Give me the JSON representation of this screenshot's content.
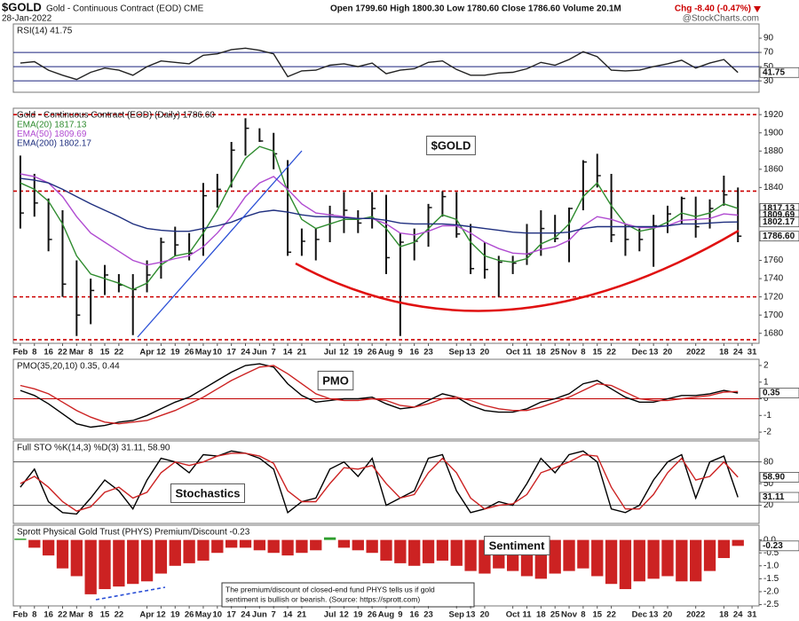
{
  "header": {
    "symbol": "$GOLD",
    "name": "Gold - Continuous Contract (EOD) CME",
    "date": "28-Jan-2022",
    "quote": "Open 1799.60  High 1800.30  Low 1780.60  Close 1786.60  Volume 20.1M",
    "change": "Chg -8.40 (-0.47%)",
    "credit": "@StockCharts.com"
  },
  "chart_data": [
    {
      "type": "line",
      "title": "RSI(14) 41.75",
      "ylim": [
        14,
        110
      ],
      "yticks": [
        30,
        50,
        70,
        90
      ],
      "reference_lines": [
        30,
        50,
        70
      ],
      "reference_color": "#1a237e",
      "reference_dashed": false,
      "tags": [
        41.75
      ],
      "series": [
        {
          "color": "#222222",
          "values": [
            55,
            57,
            45,
            38,
            32,
            42,
            48,
            45,
            38,
            50,
            58,
            56,
            54,
            66,
            68,
            74,
            76,
            73,
            68,
            36,
            44,
            45,
            52,
            54,
            50,
            55,
            40,
            45,
            47,
            56,
            58,
            46,
            38,
            38,
            41,
            42,
            47,
            56,
            52,
            60,
            71,
            64,
            45,
            44,
            45,
            50,
            54,
            59,
            48,
            55,
            60,
            41.75,
            null
          ]
        }
      ]
    },
    {
      "type": "ohlc",
      "title": "Gold - Continuous Contract (EOD) (Daily) 1786.60",
      "annotation": "$GOLD",
      "color": "#111111",
      "ylim": [
        1669,
        1927
      ],
      "yticks": [
        1680,
        1700,
        1720,
        1740,
        1760,
        1840,
        1860,
        1880,
        1900,
        1920
      ],
      "reference_lines": [
        1673,
        1720,
        1836,
        1920
      ],
      "reference_color": "#cc0000",
      "reference_dashed": true,
      "tags": [
        1817.13,
        1809.69,
        1802.17,
        {
          "value": 1786.6,
          "label": "1786.60"
        }
      ],
      "categories": [
        "Feb",
        "8",
        "16",
        "22",
        "Mar",
        "8",
        "15",
        "22",
        null,
        "Apr",
        "12",
        "19",
        "26",
        "May",
        "10",
        "17",
        "24",
        "Jun",
        "7",
        "14",
        "21",
        null,
        "Jul",
        "12",
        "19",
        "26",
        "Aug",
        "9",
        "16",
        "23",
        null,
        "Sep",
        "13",
        "20",
        null,
        "Oct",
        "11",
        "18",
        "25",
        "Nov",
        "8",
        "15",
        "22",
        null,
        "Dec",
        "13",
        "20",
        null,
        "2022",
        null,
        "18",
        "24",
        "31"
      ],
      "high": [
        1875,
        1855,
        1828,
        1815,
        1760,
        1740,
        1755,
        1745,
        1745,
        1760,
        1785,
        1797,
        1790,
        1845,
        1855,
        1890,
        1916,
        1905,
        1900,
        1870,
        1795,
        1795,
        1820,
        1835,
        1815,
        1835,
        1832,
        1790,
        1795,
        1822,
        1836,
        1835,
        1800,
        1780,
        1765,
        1765,
        1800,
        1815,
        1810,
        1818,
        1870,
        1877,
        1855,
        1800,
        1795,
        1810,
        1820,
        1830,
        1830,
        1827,
        1853,
        1840,
        null
      ],
      "low": [
        1795,
        1808,
        1770,
        1720,
        1677,
        1690,
        1722,
        1725,
        1678,
        1725,
        1740,
        1765,
        1760,
        1765,
        1818,
        1840,
        1875,
        1890,
        1860,
        1765,
        1765,
        1760,
        1780,
        1790,
        1790,
        1795,
        1745,
        1677,
        1760,
        1775,
        1808,
        1785,
        1745,
        1740,
        1720,
        1745,
        1755,
        1765,
        1780,
        1758,
        1815,
        1840,
        1780,
        1765,
        1770,
        1753,
        1790,
        1800,
        1785,
        1795,
        1820,
        1780,
        null
      ],
      "close": [
        1812,
        1823,
        1783,
        1734,
        1700,
        1727,
        1744,
        1733,
        1728,
        1744,
        1780,
        1777,
        1768,
        1831,
        1838,
        1881,
        1905,
        1891,
        1877,
        1769,
        1781,
        1783,
        1810,
        1815,
        1801,
        1817,
        1763,
        1780,
        1781,
        1818,
        1830,
        1789,
        1751,
        1750,
        1758,
        1757,
        1767,
        1795,
        1784,
        1817,
        1868,
        1853,
        1788,
        1783,
        1783,
        1798,
        1811,
        1828,
        1797,
        1817,
        1832,
        1786.6,
        null
      ],
      "series": [
        {
          "name": "EMA(20) 1817.13",
          "color": "#2e8b2e",
          "values": [
            1845,
            1838,
            1825,
            1800,
            1765,
            1745,
            1740,
            1735,
            1728,
            1735,
            1755,
            1765,
            1768,
            1790,
            1815,
            1845,
            1872,
            1885,
            1880,
            1835,
            1805,
            1795,
            1800,
            1805,
            1805,
            1808,
            1795,
            1775,
            1780,
            1795,
            1810,
            1805,
            1780,
            1765,
            1760,
            1758,
            1762,
            1778,
            1785,
            1800,
            1830,
            1845,
            1820,
            1800,
            1792,
            1795,
            1802,
            1812,
            1808,
            1812,
            1822,
            1817.13,
            null
          ]
        },
        {
          "name": "EMA(50) 1809.69",
          "color": "#b04bd1",
          "values": [
            1855,
            1852,
            1845,
            1830,
            1808,
            1790,
            1780,
            1770,
            1760,
            1755,
            1758,
            1762,
            1765,
            1775,
            1790,
            1808,
            1830,
            1845,
            1852,
            1838,
            1822,
            1812,
            1810,
            1808,
            1806,
            1806,
            1800,
            1790,
            1788,
            1792,
            1798,
            1798,
            1790,
            1780,
            1773,
            1768,
            1767,
            1772,
            1775,
            1782,
            1798,
            1808,
            1805,
            1800,
            1796,
            1796,
            1798,
            1804,
            1805,
            1806,
            1811,
            1809.69,
            null
          ]
        },
        {
          "name": "EMA(200) 1802.17",
          "color": "#1f2f7f",
          "values": [
            1850,
            1848,
            1845,
            1838,
            1830,
            1822,
            1815,
            1808,
            1800,
            1795,
            1793,
            1792,
            1792,
            1795,
            1798,
            1802,
            1808,
            1813,
            1815,
            1813,
            1810,
            1808,
            1808,
            1807,
            1806,
            1806,
            1804,
            1801,
            1800,
            1800,
            1800,
            1799,
            1797,
            1795,
            1793,
            1791,
            1790,
            1790,
            1790,
            1791,
            1795,
            1797,
            1797,
            1797,
            1797,
            1797,
            1798,
            1800,
            1800,
            1801,
            1802,
            1802.17,
            null
          ]
        }
      ]
    },
    {
      "type": "line",
      "title": "PMO(35,20,10) 0.35, 0.44",
      "annotation": "PMO",
      "ylim": [
        -2.42,
        2.37
      ],
      "yticks": [
        2,
        1,
        0,
        -1,
        -2
      ],
      "reference_lines": [
        0
      ],
      "reference_color": "#c00000",
      "reference_dashed": false,
      "tags": [
        0.35
      ],
      "series": [
        {
          "color": "#000000",
          "values": [
            0.5,
            0.2,
            -0.3,
            -0.9,
            -1.5,
            -1.7,
            -1.6,
            -1.4,
            -1.3,
            -1.0,
            -0.6,
            -0.2,
            0.1,
            0.6,
            1.1,
            1.6,
            2.0,
            2.1,
            1.9,
            0.9,
            0.2,
            -0.2,
            -0.1,
            0.0,
            0.0,
            0.1,
            -0.3,
            -0.6,
            -0.5,
            -0.1,
            0.3,
            0.1,
            -0.4,
            -0.7,
            -0.8,
            -0.8,
            -0.6,
            -0.2,
            0.0,
            0.3,
            0.9,
            1.1,
            0.6,
            0.1,
            -0.2,
            -0.2,
            0.0,
            0.2,
            0.2,
            0.3,
            0.5,
            0.35,
            null
          ]
        },
        {
          "color": "#cc2222",
          "values": [
            0.8,
            0.6,
            0.3,
            -0.2,
            -0.7,
            -1.1,
            -1.4,
            -1.5,
            -1.4,
            -1.3,
            -1.0,
            -0.7,
            -0.3,
            0.1,
            0.6,
            1.1,
            1.5,
            1.9,
            2.0,
            1.5,
            0.9,
            0.3,
            0.0,
            -0.1,
            -0.1,
            0.0,
            -0.1,
            -0.4,
            -0.5,
            -0.3,
            0.0,
            0.1,
            -0.1,
            -0.4,
            -0.6,
            -0.7,
            -0.7,
            -0.5,
            -0.2,
            0.1,
            0.5,
            0.9,
            0.8,
            0.4,
            0.0,
            -0.1,
            -0.1,
            0.0,
            0.1,
            0.2,
            0.4,
            0.44,
            null
          ]
        }
      ]
    },
    {
      "type": "line",
      "title": "Full STO %K(14,3) %D(3) 31.11, 58.90",
      "annotation": "Stochastics",
      "ylim": [
        -5,
        109
      ],
      "yticks": [
        20,
        50,
        80
      ],
      "reference_lines": [
        20,
        80
      ],
      "reference_color": "#555555",
      "reference_dashed": false,
      "tags": [
        {
          "value": 58.9,
          "label": "58.90"
        },
        31.11
      ],
      "series": [
        {
          "color": "#000000",
          "values": [
            45,
            70,
            25,
            10,
            8,
            30,
            55,
            40,
            15,
            55,
            85,
            80,
            65,
            90,
            88,
            95,
            92,
            85,
            70,
            10,
            25,
            30,
            70,
            80,
            60,
            85,
            20,
            30,
            40,
            85,
            90,
            40,
            10,
            15,
            25,
            20,
            50,
            85,
            65,
            90,
            95,
            80,
            15,
            10,
            20,
            55,
            80,
            90,
            30,
            80,
            88,
            31.11,
            null
          ]
        },
        {
          "color": "#cc2222",
          "values": [
            50,
            60,
            45,
            25,
            12,
            18,
            38,
            45,
            30,
            38,
            65,
            80,
            75,
            80,
            88,
            92,
            92,
            88,
            78,
            40,
            25,
            25,
            50,
            72,
            70,
            75,
            50,
            30,
            35,
            65,
            85,
            65,
            30,
            15,
            20,
            22,
            35,
            65,
            72,
            80,
            90,
            88,
            45,
            15,
            15,
            35,
            65,
            85,
            55,
            60,
            80,
            58.9,
            null
          ]
        }
      ]
    },
    {
      "type": "bar",
      "title": "Sprott Physical Gold Trust (PHYS) Premium/Discount -0.23",
      "annotation": "Sentiment",
      "note": [
        "The premium/discount of closed-end fund PHYS tells us if gold",
        "sentiment is bullish or bearish. (Source: https://sprott.com)"
      ],
      "color": "#cc2222",
      "positive_color": "#2e9e2e",
      "ylim": [
        -2.55,
        0.57
      ],
      "yticks": [
        {
          "value": 0,
          "label": "0.0"
        },
        -0.5,
        {
          "value": -1,
          "label": "-1.0"
        },
        -1.5,
        {
          "value": -2,
          "label": "-2.0"
        },
        -2.5
      ],
      "tags": [
        -0.23
      ],
      "categories": [
        "Feb",
        "8",
        "16",
        "22",
        "Mar",
        "8",
        "15",
        "22",
        null,
        "Apr",
        "12",
        "19",
        "26",
        "May",
        "10",
        "17",
        "24",
        "Jun",
        "7",
        "14",
        "21",
        null,
        "Jul",
        "12",
        "19",
        "26",
        "Aug",
        "9",
        "16",
        "23",
        null,
        "Sep",
        "13",
        "20",
        null,
        "Oct",
        "11",
        "18",
        "25",
        "Nov",
        "8",
        "15",
        "22",
        null,
        "Dec",
        "13",
        "20",
        null,
        "2022",
        null,
        "18",
        "24",
        "31"
      ],
      "values": [
        0.05,
        -0.3,
        -0.6,
        -1.1,
        -1.4,
        -2.1,
        -1.9,
        -1.8,
        -1.7,
        -1.6,
        -1.3,
        -1.0,
        -0.9,
        -0.8,
        -0.5,
        -0.3,
        -0.3,
        -0.4,
        -0.5,
        -0.6,
        -0.5,
        -0.4,
        0.1,
        -0.3,
        -0.4,
        -0.5,
        -0.8,
        -0.9,
        -1.0,
        -0.9,
        -0.8,
        -1.0,
        -1.2,
        -1.3,
        -1.1,
        -1.2,
        -1.4,
        -1.5,
        -1.3,
        -1.2,
        -1.1,
        -1.4,
        -1.7,
        -1.9,
        -1.6,
        -1.5,
        -1.4,
        -1.6,
        -1.6,
        -1.2,
        -0.7,
        -0.23,
        null
      ]
    }
  ]
}
